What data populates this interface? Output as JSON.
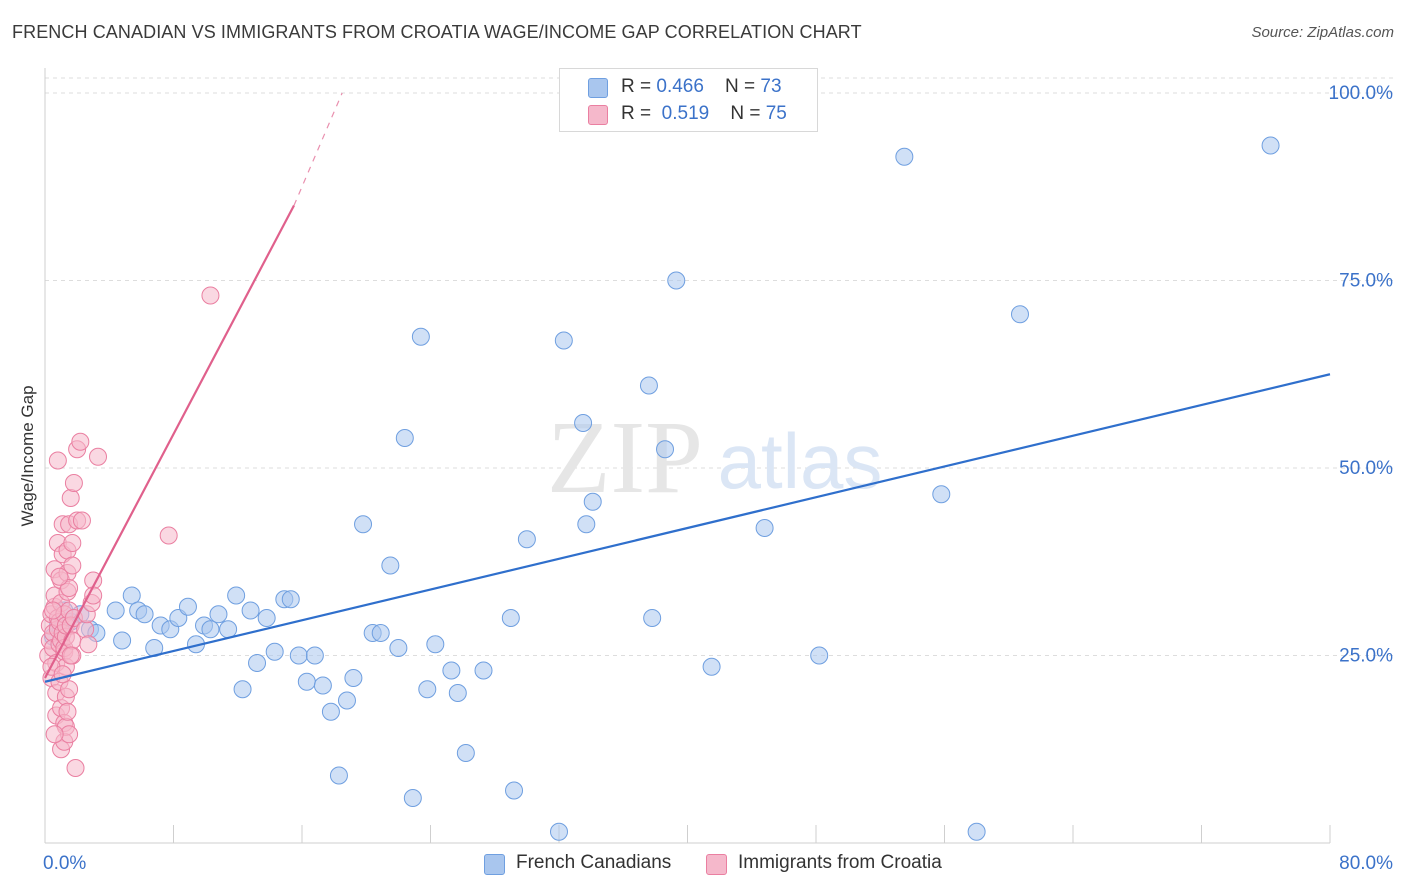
{
  "title": "FRENCH CANADIAN VS IMMIGRANTS FROM CROATIA WAGE/INCOME GAP CORRELATION CHART",
  "source": "Source: ZipAtlas.com",
  "watermark": {
    "zip": "ZIP",
    "atlas": "atlas"
  },
  "legend_top": {
    "rows": [
      {
        "r_label": "R = ",
        "r_value": "0.466",
        "n_label": "N = ",
        "n_value": "73"
      },
      {
        "r_label": "R = ",
        "r_value": "0.519",
        "n_label": "N = ",
        "n_value": "75"
      }
    ]
  },
  "legend_bottom": {
    "series1": "French Canadians",
    "series2": "Immigrants from Croatia"
  },
  "colors": {
    "blue_fill": "#a9c6ee",
    "blue_stroke": "#6f9fe0",
    "blue_line": "#2f6fcc",
    "pink_fill": "#f5b8cb",
    "pink_stroke": "#ea7fa1",
    "pink_line": "#e0608c",
    "axis_text": "#3b72c9",
    "grid": "#dddddd"
  },
  "chart_data": {
    "type": "scatter",
    "title": "FRENCH CANADIAN VS IMMIGRANTS FROM CROATIA WAGE/INCOME GAP CORRELATION CHART",
    "xlabel": "",
    "ylabel": "Wage/Income Gap",
    "xlim": [
      0,
      80
    ],
    "ylim": [
      0,
      102
    ],
    "x_tick_labels": [
      "0.0%",
      "80.0%"
    ],
    "y_ticks": [
      25,
      50,
      75,
      100
    ],
    "y_tick_labels": [
      "25.0%",
      "50.0%",
      "75.0%",
      "100.0%"
    ],
    "grid": true,
    "series": [
      {
        "name": "French Canadians",
        "r": 0.466,
        "n": 73,
        "trend": {
          "x1": 0,
          "y1": 21.5,
          "x2": 80,
          "y2": 62.5
        },
        "points": [
          [
            0.5,
            27.5
          ],
          [
            0.8,
            29.0
          ],
          [
            1.0,
            28.5
          ],
          [
            1.2,
            31.0
          ],
          [
            1.6,
            29.5
          ],
          [
            2.2,
            30.5
          ],
          [
            2.8,
            28.5
          ],
          [
            3.2,
            28.0
          ],
          [
            4.4,
            31.0
          ],
          [
            4.8,
            27.0
          ],
          [
            5.4,
            33.0
          ],
          [
            5.8,
            31.0
          ],
          [
            6.2,
            30.5
          ],
          [
            6.8,
            26.0
          ],
          [
            7.2,
            29.0
          ],
          [
            7.8,
            28.5
          ],
          [
            8.3,
            30.0
          ],
          [
            8.9,
            31.5
          ],
          [
            9.4,
            26.5
          ],
          [
            9.9,
            29.0
          ],
          [
            10.3,
            28.5
          ],
          [
            10.8,
            30.5
          ],
          [
            11.4,
            28.5
          ],
          [
            11.9,
            33.0
          ],
          [
            12.3,
            20.5
          ],
          [
            12.8,
            31.0
          ],
          [
            13.2,
            24.0
          ],
          [
            13.8,
            30.0
          ],
          [
            14.3,
            25.5
          ],
          [
            14.9,
            32.5
          ],
          [
            15.3,
            32.5
          ],
          [
            15.8,
            25.0
          ],
          [
            16.3,
            21.5
          ],
          [
            16.8,
            25.0
          ],
          [
            17.3,
            21.0
          ],
          [
            17.8,
            17.5
          ],
          [
            18.3,
            9.0
          ],
          [
            18.8,
            19.0
          ],
          [
            19.2,
            22.0
          ],
          [
            19.8,
            42.5
          ],
          [
            20.4,
            28.0
          ],
          [
            20.9,
            28.0
          ],
          [
            21.5,
            37.0
          ],
          [
            22.0,
            26.0
          ],
          [
            22.4,
            54.0
          ],
          [
            22.9,
            6.0
          ],
          [
            23.4,
            67.5
          ],
          [
            23.8,
            20.5
          ],
          [
            24.3,
            26.5
          ],
          [
            25.3,
            23.0
          ],
          [
            25.7,
            20.0
          ],
          [
            26.2,
            12.0
          ],
          [
            27.3,
            23.0
          ],
          [
            29.0,
            30.0
          ],
          [
            29.2,
            7.0
          ],
          [
            30.0,
            40.5
          ],
          [
            32.0,
            1.5
          ],
          [
            32.3,
            67.0
          ],
          [
            33.5,
            56.0
          ],
          [
            33.7,
            42.5
          ],
          [
            34.1,
            45.5
          ],
          [
            37.6,
            61.0
          ],
          [
            37.8,
            30.0
          ],
          [
            38.6,
            52.5
          ],
          [
            39.3,
            75.0
          ],
          [
            41.5,
            23.5
          ],
          [
            44.8,
            42.0
          ],
          [
            48.2,
            25.0
          ],
          [
            53.5,
            91.5
          ],
          [
            55.8,
            46.5
          ],
          [
            58.0,
            1.5
          ],
          [
            60.7,
            70.5
          ],
          [
            76.3,
            93.0
          ]
        ]
      },
      {
        "name": "Immigrants from Croatia",
        "r": 0.519,
        "n": 75,
        "trend": {
          "x1": 0,
          "y1": 22.0,
          "x2": 15.5,
          "y2": 85.0,
          "dash_x2": 18.5,
          "dash_y2": 100.0
        },
        "points": [
          [
            0.2,
            25.0
          ],
          [
            0.3,
            27.0
          ],
          [
            0.3,
            29.0
          ],
          [
            0.4,
            22.0
          ],
          [
            0.4,
            30.5
          ],
          [
            0.5,
            28.0
          ],
          [
            0.5,
            26.0
          ],
          [
            0.6,
            31.5
          ],
          [
            0.6,
            33.0
          ],
          [
            0.6,
            36.5
          ],
          [
            0.7,
            17.0
          ],
          [
            0.7,
            20.0
          ],
          [
            0.7,
            24.0
          ],
          [
            0.8,
            28.5
          ],
          [
            0.8,
            30.0
          ],
          [
            0.8,
            40.0
          ],
          [
            0.8,
            51.0
          ],
          [
            0.9,
            26.5
          ],
          [
            0.9,
            29.5
          ],
          [
            0.9,
            21.5
          ],
          [
            1.0,
            12.5
          ],
          [
            1.0,
            18.0
          ],
          [
            1.0,
            27.0
          ],
          [
            1.0,
            32.0
          ],
          [
            1.0,
            35.0
          ],
          [
            1.1,
            38.5
          ],
          [
            1.1,
            42.5
          ],
          [
            1.1,
            28.0
          ],
          [
            1.2,
            13.5
          ],
          [
            1.2,
            16.0
          ],
          [
            1.2,
            25.5
          ],
          [
            1.2,
            30.5
          ],
          [
            1.2,
            26.0
          ],
          [
            1.3,
            15.5
          ],
          [
            1.3,
            19.5
          ],
          [
            1.3,
            23.5
          ],
          [
            1.3,
            27.5
          ],
          [
            1.3,
            29.0
          ],
          [
            1.4,
            17.5
          ],
          [
            1.4,
            33.5
          ],
          [
            1.4,
            36.0
          ],
          [
            1.4,
            39.0
          ],
          [
            1.5,
            14.5
          ],
          [
            1.5,
            20.5
          ],
          [
            1.5,
            31.0
          ],
          [
            1.5,
            34.0
          ],
          [
            1.5,
            42.5
          ],
          [
            1.6,
            46.0
          ],
          [
            1.6,
            29.0
          ],
          [
            1.7,
            25.0
          ],
          [
            1.7,
            27.0
          ],
          [
            1.7,
            37.0
          ],
          [
            1.7,
            40.0
          ],
          [
            1.8,
            30.0
          ],
          [
            1.8,
            48.0
          ],
          [
            1.9,
            10.0
          ],
          [
            2.0,
            43.0
          ],
          [
            2.0,
            52.5
          ],
          [
            2.2,
            53.5
          ],
          [
            2.3,
            43.0
          ],
          [
            2.5,
            28.5
          ],
          [
            2.6,
            30.5
          ],
          [
            2.7,
            26.5
          ],
          [
            2.9,
            32.0
          ],
          [
            3.0,
            35.0
          ],
          [
            3.3,
            51.5
          ],
          [
            3.0,
            33.0
          ],
          [
            7.7,
            41.0
          ],
          [
            10.3,
            73.0
          ],
          [
            0.4,
            23.5
          ],
          [
            0.6,
            14.5
          ],
          [
            0.9,
            35.5
          ],
          [
            1.1,
            22.5
          ],
          [
            1.6,
            25.0
          ],
          [
            0.5,
            31.0
          ]
        ]
      }
    ]
  }
}
